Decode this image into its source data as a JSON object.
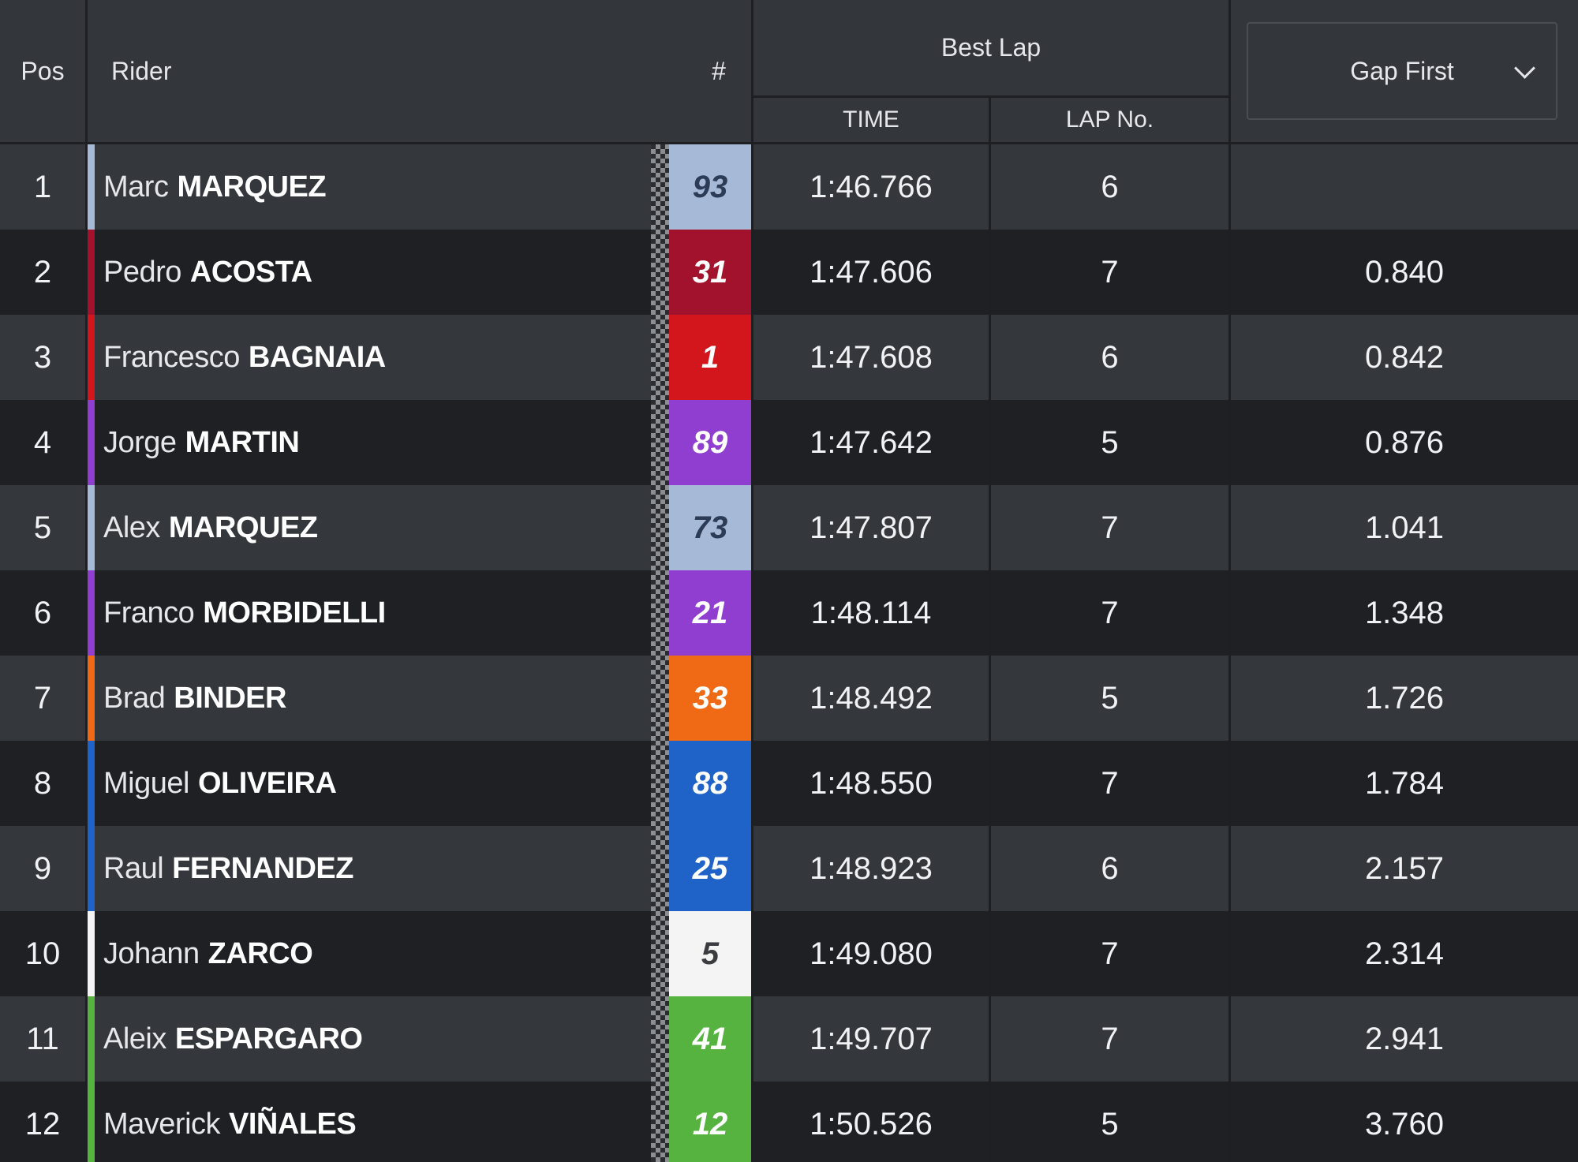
{
  "header": {
    "pos": "Pos",
    "rider": "Rider",
    "number": "#",
    "best_lap": "Best Lap",
    "time": "TIME",
    "lap_no": "LAP No.",
    "gap_select": "Gap First"
  },
  "rows": [
    {
      "pos": "1",
      "first": "Marc",
      "last": "MARQUEZ",
      "num": "93",
      "color": "#a6bad8",
      "numColor": "#2c3b56",
      "time": "1:46.766",
      "lap": "6",
      "gap": ""
    },
    {
      "pos": "2",
      "first": "Pedro",
      "last": "ACOSTA",
      "num": "31",
      "color": "#a3122c",
      "numColor": "#ffffff",
      "time": "1:47.606",
      "lap": "7",
      "gap": "0.840"
    },
    {
      "pos": "3",
      "first": "Francesco",
      "last": "BAGNAIA",
      "num": "1",
      "color": "#d3161c",
      "numColor": "#ffffff",
      "time": "1:47.608",
      "lap": "6",
      "gap": "0.842"
    },
    {
      "pos": "4",
      "first": "Jorge",
      "last": "MARTIN",
      "num": "89",
      "color": "#8f3ed0",
      "numColor": "#ffffff",
      "time": "1:47.642",
      "lap": "5",
      "gap": "0.876"
    },
    {
      "pos": "5",
      "first": "Alex",
      "last": "MARQUEZ",
      "num": "73",
      "color": "#a6bad8",
      "numColor": "#2c3b56",
      "time": "1:47.807",
      "lap": "7",
      "gap": "1.041"
    },
    {
      "pos": "6",
      "first": "Franco",
      "last": "MORBIDELLI",
      "num": "21",
      "color": "#8f3ed0",
      "numColor": "#ffffff",
      "time": "1:48.114",
      "lap": "7",
      "gap": "1.348"
    },
    {
      "pos": "7",
      "first": "Brad",
      "last": "BINDER",
      "num": "33",
      "color": "#f06a15",
      "numColor": "#ffffff",
      "time": "1:48.492",
      "lap": "5",
      "gap": "1.726"
    },
    {
      "pos": "8",
      "first": "Miguel",
      "last": "OLIVEIRA",
      "num": "88",
      "color": "#1f63c9",
      "numColor": "#ffffff",
      "time": "1:48.550",
      "lap": "7",
      "gap": "1.784"
    },
    {
      "pos": "9",
      "first": "Raul",
      "last": "FERNANDEZ",
      "num": "25",
      "color": "#1f63c9",
      "numColor": "#ffffff",
      "time": "1:48.923",
      "lap": "6",
      "gap": "2.157"
    },
    {
      "pos": "10",
      "first": "Johann",
      "last": "ZARCO",
      "num": "5",
      "color": "#f4f4f4",
      "numColor": "#3a3c40",
      "time": "1:49.080",
      "lap": "7",
      "gap": "2.314"
    },
    {
      "pos": "11",
      "first": "Aleix",
      "last": "ESPARGARO",
      "num": "41",
      "color": "#56b33f",
      "numColor": "#ffffff",
      "time": "1:49.707",
      "lap": "7",
      "gap": "2.941"
    },
    {
      "pos": "12",
      "first": "Maverick",
      "last": "VIÑALES",
      "num": "12",
      "color": "#56b33f",
      "numColor": "#ffffff",
      "time": "1:50.526",
      "lap": "5",
      "gap": "3.760"
    }
  ]
}
